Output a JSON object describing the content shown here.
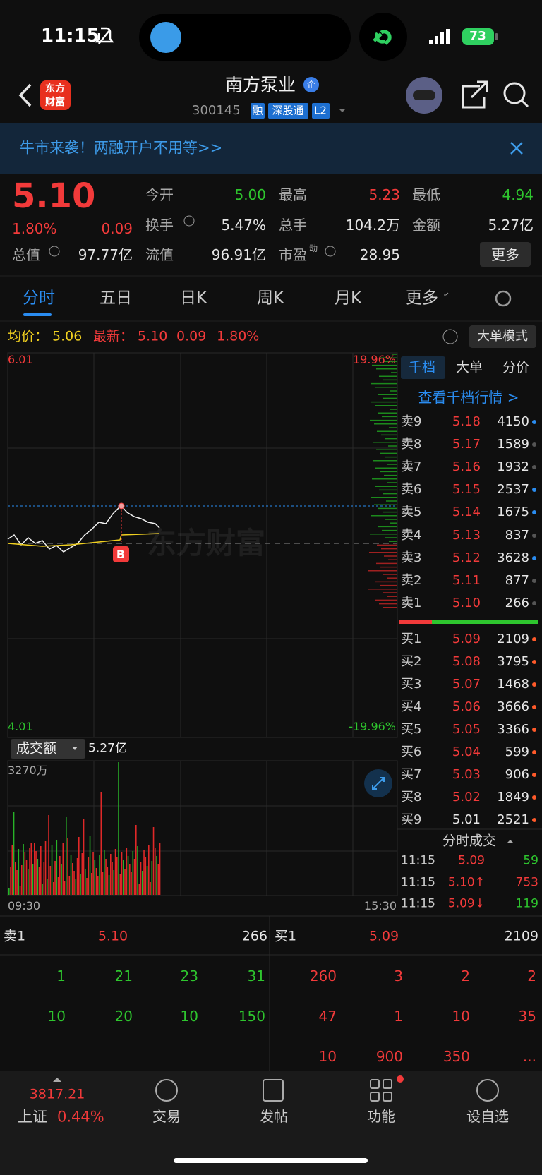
{
  "status": {
    "time": "11:15",
    "battery": "73"
  },
  "header": {
    "logo": [
      "东方",
      "财富"
    ],
    "title": "南方泵业",
    "badge": "企",
    "code": "300145",
    "tags": [
      "融",
      "深股通",
      "L2"
    ]
  },
  "banner": {
    "text": "牛市来袭！两融开户不用等>>"
  },
  "quote": {
    "price": "5.10",
    "percent": "1.80%",
    "change": "0.09",
    "total_label": "总值",
    "total_value": "97.77亿",
    "fields": [
      {
        "label": "今开",
        "value": "5.00",
        "color": "green"
      },
      {
        "label": "最高",
        "value": "5.23",
        "color": "red"
      },
      {
        "label": "最低",
        "value": "4.94",
        "color": "green"
      },
      {
        "label": "换手",
        "value": "5.47%",
        "color": "white"
      },
      {
        "label": "总手",
        "value": "104.2万",
        "color": "white"
      },
      {
        "label": "金额",
        "value": "5.27亿",
        "color": "white"
      },
      {
        "label": "流值",
        "value": "96.91亿",
        "color": "white"
      },
      {
        "label": "市盈",
        "sup": "动",
        "value": "28.95",
        "color": "white"
      }
    ],
    "more": "更多"
  },
  "tabs": [
    "分时",
    "五日",
    "日K",
    "周K",
    "月K",
    "更多"
  ],
  "infobar": {
    "avg_label": "均价：",
    "avg": "5.06",
    "last_label": "最新：",
    "last": "5.10",
    "change": "0.09",
    "percent": "1.80%",
    "mode": "大单模式"
  },
  "chart": {
    "top": "6.01",
    "top_pct": "19.96%",
    "bottom": "4.01",
    "bottom_pct": "-19.96%",
    "watermark": "东方财富",
    "marker": "B",
    "volume_label": "成交额",
    "volume_total": "5.27亿",
    "volume_max": "3270万",
    "start": "09:30",
    "end": "15:30"
  },
  "orderbook": {
    "tabs": [
      "千档",
      "大单",
      "分价"
    ],
    "link": "查看千档行情 >",
    "asks": [
      {
        "level": "卖9",
        "price": "5.18",
        "volume": "4150",
        "dot": "blue"
      },
      {
        "level": "卖8",
        "price": "5.17",
        "volume": "1589",
        "dot": "gray"
      },
      {
        "level": "卖7",
        "price": "5.16",
        "volume": "1932",
        "dot": "gray"
      },
      {
        "level": "卖6",
        "price": "5.15",
        "volume": "2537",
        "dot": "blue"
      },
      {
        "level": "卖5",
        "price": "5.14",
        "volume": "1675",
        "dot": "blue"
      },
      {
        "level": "卖4",
        "price": "5.13",
        "volume": "837",
        "dot": "gray"
      },
      {
        "level": "卖3",
        "price": "5.12",
        "volume": "3628",
        "dot": "blue"
      },
      {
        "level": "卖2",
        "price": "5.11",
        "volume": "877",
        "dot": "gray"
      },
      {
        "level": "卖1",
        "price": "5.10",
        "volume": "266",
        "dot": "gray"
      }
    ],
    "bids": [
      {
        "level": "买1",
        "price": "5.09",
        "volume": "2109",
        "color": "red"
      },
      {
        "level": "买2",
        "price": "5.08",
        "volume": "3795",
        "color": "red"
      },
      {
        "level": "买3",
        "price": "5.07",
        "volume": "1468",
        "color": "red"
      },
      {
        "level": "买4",
        "price": "5.06",
        "volume": "3666",
        "color": "red"
      },
      {
        "level": "买5",
        "price": "5.05",
        "volume": "3366",
        "color": "red"
      },
      {
        "level": "买6",
        "price": "5.04",
        "volume": "599",
        "color": "red"
      },
      {
        "level": "买7",
        "price": "5.03",
        "volume": "906",
        "color": "red"
      },
      {
        "level": "买8",
        "price": "5.02",
        "volume": "1849",
        "color": "red"
      },
      {
        "level": "买9",
        "price": "5.01",
        "volume": "2521",
        "color": "white"
      }
    ],
    "trades_title": "分时成交",
    "trades": [
      {
        "time": "11:15",
        "price": "5.09",
        "volume": "59",
        "volume_color": "green"
      },
      {
        "time": "11:15",
        "price": "5.10↑",
        "volume": "753",
        "volume_color": "red"
      },
      {
        "time": "11:15",
        "price": "5.09↓",
        "volume": "119",
        "volume_color": "green"
      }
    ]
  },
  "depth": {
    "ask": {
      "level": "卖1",
      "price": "5.10",
      "volume": "266"
    },
    "bid": {
      "level": "买1",
      "price": "5.09",
      "volume": "2109"
    },
    "ask_rows": [
      [
        1,
        21,
        23,
        31
      ],
      [
        10,
        20,
        10,
        150
      ]
    ],
    "bid_rows": [
      [
        260,
        3,
        2,
        2
      ],
      [
        47,
        1,
        10,
        35
      ],
      [
        10,
        900,
        350,
        "..."
      ]
    ]
  },
  "nav": {
    "index_value": "3817.21",
    "index_name": "上证",
    "index_change": "0.44%",
    "items": [
      "交易",
      "发帖",
      "功能",
      "设自选"
    ]
  }
}
